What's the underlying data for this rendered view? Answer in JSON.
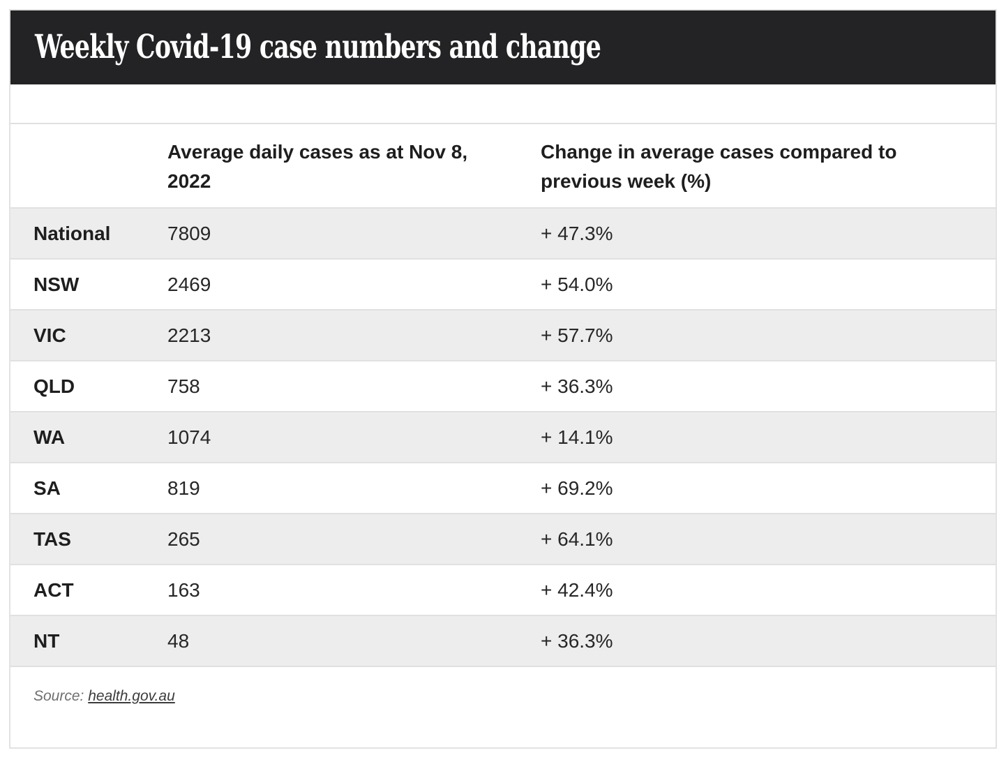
{
  "header": {
    "title": "Weekly Covid-19 case numbers and change"
  },
  "table": {
    "col_region_header": "",
    "col_cases_header": "Average daily cases as at Nov 8, 2022",
    "col_change_header": "Change in average cases compared to previous week (%)",
    "rows": [
      {
        "region": "National",
        "cases": "7809",
        "change": "+ 47.3%"
      },
      {
        "region": "NSW",
        "cases": "2469",
        "change": "+ 54.0%"
      },
      {
        "region": "VIC",
        "cases": "2213",
        "change": "+ 57.7%"
      },
      {
        "region": "QLD",
        "cases": "758",
        "change": "+ 36.3%"
      },
      {
        "region": "WA",
        "cases": "1074",
        "change": "+ 14.1%"
      },
      {
        "region": "SA",
        "cases": "819",
        "change": "+ 69.2%"
      },
      {
        "region": "TAS",
        "cases": "265",
        "change": "+ 64.1%"
      },
      {
        "region": "ACT",
        "cases": "163",
        "change": "+ 42.4%"
      },
      {
        "region": "NT",
        "cases": "48",
        "change": "+ 36.3%"
      }
    ]
  },
  "footer": {
    "source_label": "Source:",
    "source_link": "health.gov.au"
  },
  "chart_data": {
    "type": "table",
    "title": "Weekly Covid-19 case numbers and change",
    "columns": [
      "",
      "Average daily cases as at Nov 8, 2022",
      "Change in average cases compared to previous week (%)"
    ],
    "regions": [
      "National",
      "NSW",
      "VIC",
      "QLD",
      "WA",
      "SA",
      "TAS",
      "ACT",
      "NT"
    ],
    "avg_daily_cases": [
      7809,
      2469,
      2213,
      758,
      1074,
      819,
      265,
      163,
      48
    ],
    "change_pct": [
      47.3,
      54.0,
      57.7,
      36.3,
      14.1,
      69.2,
      64.1,
      42.4,
      36.3
    ],
    "source": "health.gov.au",
    "layout": {
      "striped_rows": true,
      "stripe_start": "first-data-row"
    }
  },
  "colors": {
    "header_bg": "#232325",
    "stripe": "#ededed",
    "row_border": "#e0e0e0",
    "card_border": "#e2e2e2",
    "heading_text": "#1e1e1e",
    "body_text": "#272727",
    "source_muted": "#6f6f6f",
    "link": "#3c3c3c"
  }
}
